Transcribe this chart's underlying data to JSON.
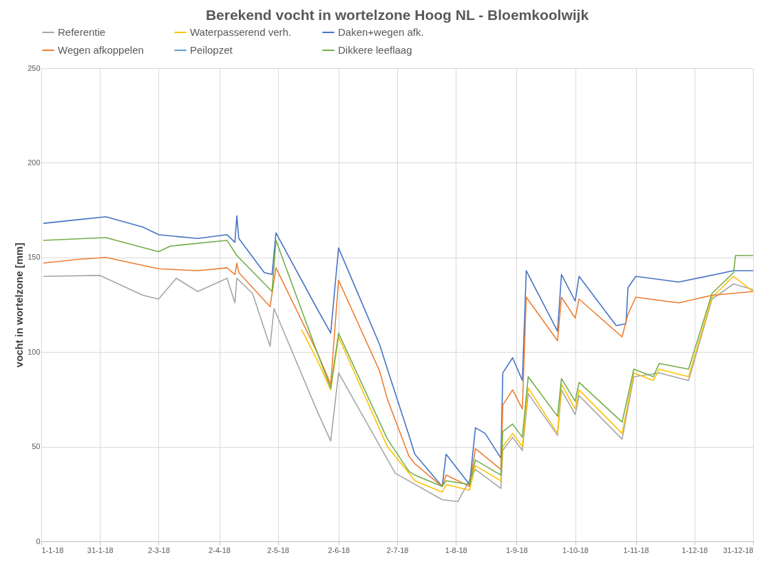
{
  "chart_data": {
    "type": "line",
    "title": "Berekend vocht in wortelzone Hoog NL - Bloemkoolwijk",
    "ylabel": "vocht in wortelzone [mm]",
    "legend": "top",
    "grid": true,
    "line_style": "solid",
    "marker": "none",
    "xlim": [
      "2018-01-01",
      "2018-12-31"
    ],
    "xticks": [
      {
        "value": "2018-01-01",
        "label": "1-1-18"
      },
      {
        "value": "2018-01-31",
        "label": "31-1-18"
      },
      {
        "value": "2018-03-02",
        "label": "2-3-18"
      },
      {
        "value": "2018-04-02",
        "label": "2-4-18"
      },
      {
        "value": "2018-05-02",
        "label": "2-5-18"
      },
      {
        "value": "2018-06-02",
        "label": "2-6-18"
      },
      {
        "value": "2018-07-02",
        "label": "2-7-18"
      },
      {
        "value": "2018-08-01",
        "label": "1-8-18"
      },
      {
        "value": "2018-09-01",
        "label": "1-9-18"
      },
      {
        "value": "2018-10-01",
        "label": "1-10-18"
      },
      {
        "value": "2018-11-01",
        "label": "1-11-18"
      },
      {
        "value": "2018-12-01",
        "label": "1-12-18"
      },
      {
        "value": "2018-12-31",
        "label": "31-12-18"
      }
    ],
    "ylim": [
      0,
      250
    ],
    "yticks": [
      0,
      50,
      100,
      150,
      200,
      250
    ],
    "series": [
      {
        "name": "Referentie",
        "color": "#a5a5a5",
        "x": [
          "2018-01-02",
          "2018-01-31",
          "2018-02-22",
          "2018-03-02",
          "2018-03-11",
          "2018-03-22",
          "2018-04-06",
          "2018-04-10",
          "2018-04-11",
          "2018-04-19",
          "2018-04-28",
          "2018-04-30",
          "2018-05-22",
          "2018-05-29",
          "2018-06-02",
          "2018-07-01",
          "2018-07-25",
          "2018-08-02",
          "2018-08-11",
          "2018-08-24",
          "2018-08-25",
          "2018-08-30",
          "2018-09-04",
          "2018-09-07",
          "2018-09-22",
          "2018-09-24",
          "2018-10-01",
          "2018-10-03",
          "2018-10-25",
          "2018-10-31",
          "2018-11-13",
          "2018-11-28",
          "2018-12-10",
          "2018-12-21",
          "2018-12-31"
        ],
        "values": [
          140,
          140.5,
          130,
          128,
          139,
          132,
          139,
          126,
          139,
          131,
          103,
          123,
          69,
          53,
          89,
          36,
          22,
          21,
          38,
          28,
          48,
          55,
          48,
          78,
          56,
          80,
          67,
          77,
          54,
          87,
          89,
          85,
          128,
          136,
          133
        ]
      },
      {
        "name": "Waterpasserend verh.",
        "color": "#ffc000",
        "x": [
          "2018-05-14",
          "2018-05-22",
          "2018-05-29",
          "2018-06-02",
          "2018-06-27",
          "2018-07-08",
          "2018-07-11",
          "2018-07-25",
          "2018-07-27",
          "2018-08-08",
          "2018-08-11",
          "2018-08-24",
          "2018-08-25",
          "2018-08-30",
          "2018-09-04",
          "2018-09-07",
          "2018-09-22",
          "2018-09-24",
          "2018-10-01",
          "2018-10-03",
          "2018-10-25",
          "2018-10-31",
          "2018-11-10",
          "2018-11-13",
          "2018-11-28",
          "2018-12-10",
          "2018-12-21",
          "2018-12-31"
        ],
        "values": [
          112,
          96,
          80,
          108,
          50,
          36,
          32,
          26,
          30,
          27,
          40,
          32,
          50,
          57,
          50,
          81,
          57,
          83,
          70,
          80,
          57,
          89,
          85,
          91,
          87,
          129,
          140,
          132
        ]
      },
      {
        "name": "Daken+wegen afk.",
        "color": "#4472c4",
        "x": [
          "2018-01-02",
          "2018-01-20",
          "2018-02-03",
          "2018-02-22",
          "2018-03-02",
          "2018-03-22",
          "2018-04-06",
          "2018-04-10",
          "2018-04-11",
          "2018-04-12",
          "2018-04-25",
          "2018-04-29",
          "2018-05-01",
          "2018-05-22",
          "2018-05-29",
          "2018-06-02",
          "2018-06-23",
          "2018-06-27",
          "2018-07-08",
          "2018-07-11",
          "2018-07-25",
          "2018-07-27",
          "2018-08-08",
          "2018-08-11",
          "2018-08-16",
          "2018-08-24",
          "2018-08-25",
          "2018-08-30",
          "2018-09-04",
          "2018-09-06",
          "2018-09-22",
          "2018-09-24",
          "2018-10-01",
          "2018-10-03",
          "2018-10-22",
          "2018-10-27",
          "2018-10-28",
          "2018-11-01",
          "2018-11-23",
          "2018-12-21",
          "2018-12-31"
        ],
        "values": [
          168,
          170,
          171.5,
          166,
          162,
          160,
          162,
          158,
          172,
          160,
          142,
          141,
          163,
          123,
          110,
          155,
          104,
          91,
          56,
          46,
          29,
          46,
          30,
          60,
          57,
          44,
          89,
          97,
          85,
          143,
          111,
          141,
          127,
          140,
          114,
          115,
          134,
          140,
          137,
          143,
          143
        ]
      },
      {
        "name": "Wegen afkoppelen",
        "color": "#ed7d31",
        "x": [
          "2018-01-02",
          "2018-01-20",
          "2018-02-03",
          "2018-03-02",
          "2018-03-22",
          "2018-04-06",
          "2018-04-10",
          "2018-04-11",
          "2018-04-12",
          "2018-04-28",
          "2018-05-01",
          "2018-05-22",
          "2018-05-29",
          "2018-06-02",
          "2018-06-23",
          "2018-06-27",
          "2018-07-08",
          "2018-07-11",
          "2018-07-25",
          "2018-07-27",
          "2018-08-08",
          "2018-08-11",
          "2018-08-24",
          "2018-08-25",
          "2018-08-30",
          "2018-09-04",
          "2018-09-06",
          "2018-09-22",
          "2018-09-24",
          "2018-10-01",
          "2018-10-03",
          "2018-10-25",
          "2018-10-28",
          "2018-11-01",
          "2018-11-23",
          "2018-12-10",
          "2018-12-31"
        ],
        "values": [
          147,
          149,
          150,
          144,
          143,
          144.5,
          141,
          147,
          142,
          124,
          144.5,
          100,
          83,
          138,
          90,
          75,
          45,
          41,
          29,
          35,
          29,
          49,
          38,
          72,
          80,
          70,
          129,
          106,
          129,
          118,
          128,
          108,
          120,
          129,
          126,
          130,
          132
        ]
      },
      {
        "name": "Peilopzet",
        "color": "#5b9bd5"
      },
      {
        "name": "Dikkere leeflaag",
        "color": "#70ad47",
        "x": [
          "2018-01-02",
          "2018-02-03",
          "2018-03-02",
          "2018-03-08",
          "2018-04-06",
          "2018-04-11",
          "2018-04-29",
          "2018-05-01",
          "2018-05-22",
          "2018-05-29",
          "2018-06-02",
          "2018-06-27",
          "2018-07-08",
          "2018-07-11",
          "2018-07-25",
          "2018-07-27",
          "2018-08-08",
          "2018-08-11",
          "2018-08-24",
          "2018-08-25",
          "2018-08-30",
          "2018-09-04",
          "2018-09-07",
          "2018-09-22",
          "2018-09-24",
          "2018-10-01",
          "2018-10-03",
          "2018-10-25",
          "2018-10-31",
          "2018-11-10",
          "2018-11-13",
          "2018-11-28",
          "2018-12-10",
          "2018-12-21",
          "2018-12-22",
          "2018-12-31"
        ],
        "values": [
          159,
          160.5,
          153,
          156,
          159,
          151,
          132,
          159,
          100,
          81,
          110,
          54,
          37,
          35,
          29,
          32,
          30,
          43,
          35,
          58,
          62,
          55,
          87,
          66,
          86,
          74,
          84,
          63,
          91,
          87,
          94,
          91,
          131,
          142,
          151,
          151
        ]
      }
    ]
  }
}
